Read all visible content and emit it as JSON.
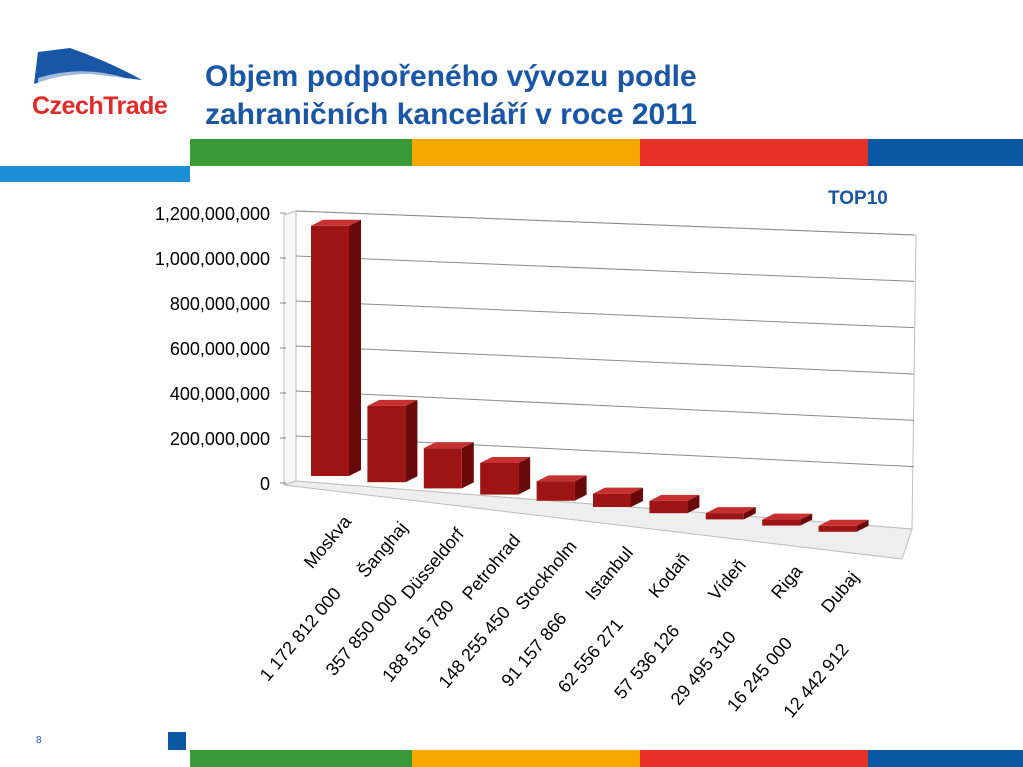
{
  "slide": {
    "title_line1": "Objem podpořeného vývozu podle",
    "title_line2": "zahraničních kanceláří v roce 2011",
    "tag": "TOP10",
    "page_number": "8",
    "logo_text": "CzechTrade"
  },
  "colors": {
    "title": "#1a56a6",
    "bar_front": "#9e1414",
    "bar_side": "#6a0909",
    "bar_top": "#c63030",
    "stripe_green": "#3a9a35",
    "stripe_orange": "#f5a800",
    "stripe_red": "#e63028",
    "stripe_blue": "#0a57a4",
    "stripe_lightblue": "#1d8fd6"
  },
  "chart_data": {
    "type": "bar",
    "categories": [
      "Moskva",
      "Šanghaj",
      "Düsseldorf",
      "Petrohrad",
      "Stockholm",
      "Istanbul",
      "Kodaň",
      "Vídeň",
      "Riga",
      "Dubaj"
    ],
    "value_labels": [
      "1 172 812 000",
      "357 850 000",
      "188 516 780",
      "148 255 450",
      "91 157 866",
      "62 556 271",
      "57 536 126",
      "29 495 310",
      "16 245 000",
      "12 442 912"
    ],
    "values": [
      1172812000,
      357850000,
      188516780,
      148255450,
      91157866,
      62556271,
      57536126,
      29495310,
      16245000,
      12442912
    ],
    "yticks": [
      "0",
      "200,000,000",
      "400,000,000",
      "600,000,000",
      "800,000,000",
      "1,000,000,000",
      "1,200,000,000"
    ],
    "ylim": [
      0,
      1200000000
    ],
    "grid": true,
    "style": "3d"
  }
}
